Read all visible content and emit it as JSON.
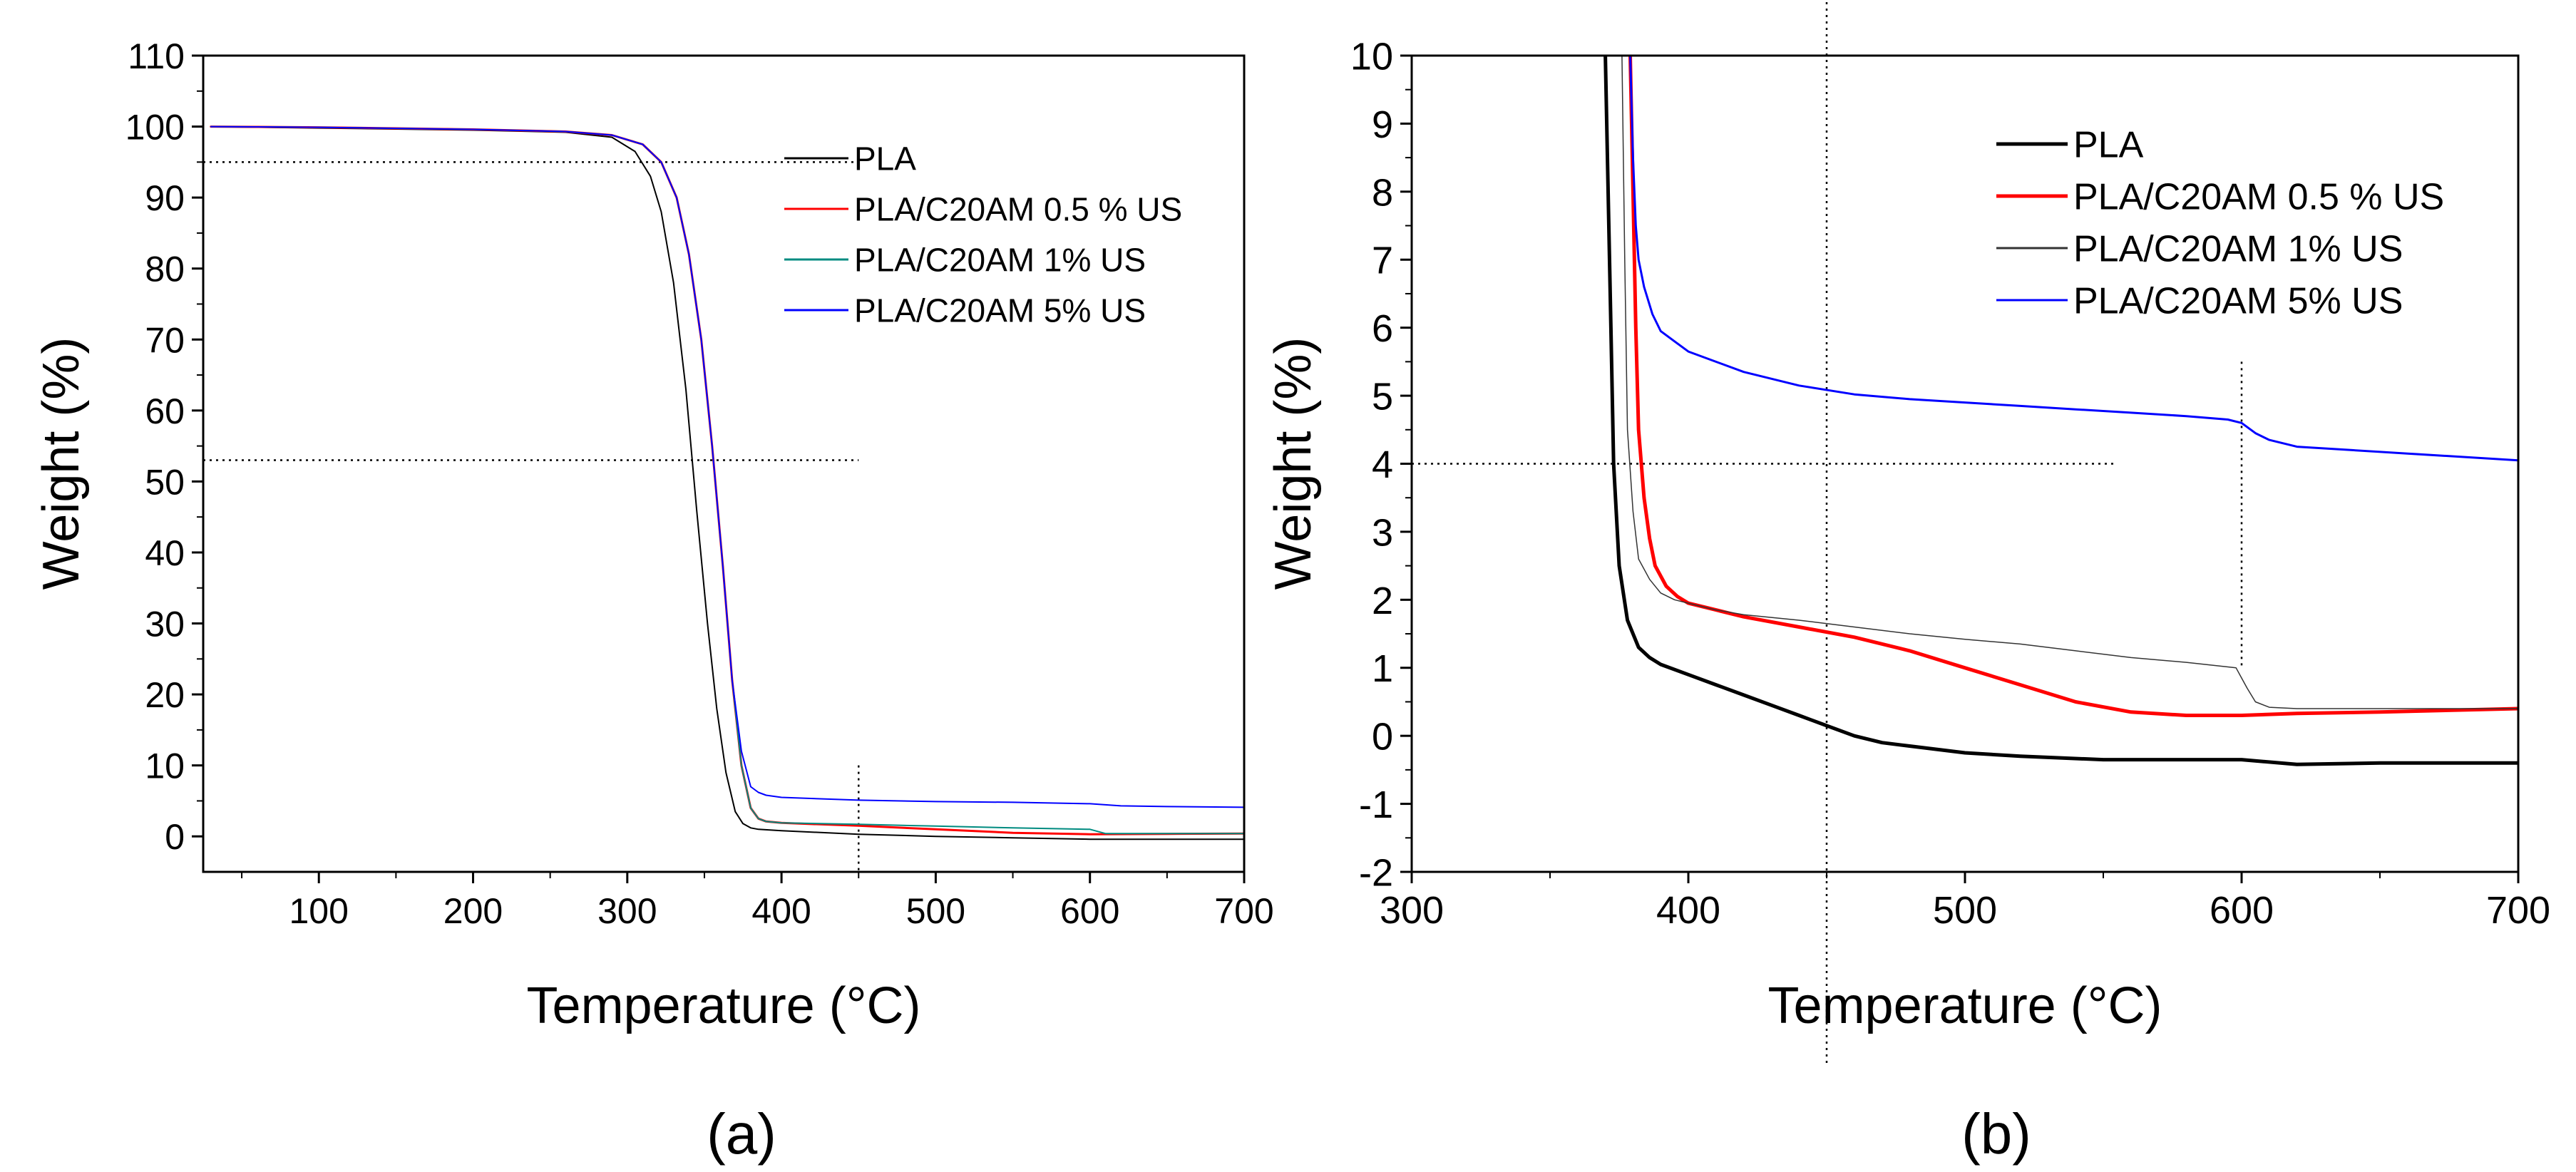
{
  "figure": {
    "panel_labels": [
      "(a)",
      "(b)"
    ]
  },
  "colors": {
    "PLA_a": "#000000",
    "PLA_b": "#000000",
    "red": "#ff0000",
    "teal": "#008b80",
    "grey": "#333333",
    "blue": "#0000ff",
    "reference": "#000000"
  },
  "chart_data": [
    {
      "type": "line",
      "panel": "(a)",
      "title": "",
      "xlabel": "Temperature (°C)",
      "ylabel": "Weight (%)",
      "xlim": [
        25,
        700
      ],
      "ylim": [
        -5,
        110
      ],
      "xticks": [
        100,
        200,
        300,
        400,
        500,
        600,
        700
      ],
      "yticks": [
        0,
        10,
        20,
        30,
        40,
        50,
        60,
        70,
        80,
        90,
        100,
        110
      ],
      "legend_position": "top-right",
      "series": [
        {
          "name": "PLA",
          "color_key": "PLA_a",
          "width": 2,
          "x": [
            30,
            100,
            200,
            260,
            290,
            305,
            315,
            322,
            330,
            338,
            345,
            352,
            358,
            364,
            370,
            375,
            380,
            385,
            400,
            450,
            500,
            550,
            600,
            650,
            700
          ],
          "y": [
            100,
            99.8,
            99.5,
            99.2,
            98.5,
            96.5,
            93,
            88,
            78,
            63,
            46,
            30,
            18,
            9,
            3.5,
            1.8,
            1.2,
            1.0,
            0.8,
            0.3,
            0.0,
            -0.2,
            -0.4,
            -0.4,
            -0.4
          ]
        },
        {
          "name": "PLA/C20AM 0.5 % US",
          "color_key": "red",
          "width": 3,
          "x": [
            30,
            100,
            200,
            260,
            290,
            310,
            322,
            332,
            340,
            348,
            355,
            362,
            368,
            374,
            380,
            385,
            390,
            400,
            450,
            500,
            550,
            600,
            650,
            700
          ],
          "y": [
            100,
            99.9,
            99.6,
            99.3,
            98.8,
            97.5,
            95,
            90,
            82,
            70,
            55,
            38,
            22,
            10,
            4,
            2.5,
            2.1,
            1.9,
            1.5,
            1.0,
            0.5,
            0.3,
            0.35,
            0.4
          ]
        },
        {
          "name": "PLA/C20AM 1% US",
          "color_key": "teal",
          "width": 2,
          "x": [
            30,
            100,
            200,
            260,
            290,
            310,
            322,
            332,
            340,
            348,
            355,
            362,
            368,
            374,
            380,
            385,
            390,
            400,
            450,
            500,
            550,
            600,
            610,
            650,
            700
          ],
          "y": [
            100,
            99.9,
            99.6,
            99.3,
            98.8,
            97.5,
            95,
            90,
            82,
            70,
            55,
            38,
            22,
            10,
            4,
            2.5,
            2.1,
            1.9,
            1.7,
            1.45,
            1.2,
            1.0,
            0.4,
            0.4,
            0.4
          ]
        },
        {
          "name": "PLA/C20AM 5% US",
          "color_key": "blue",
          "width": 2,
          "x": [
            30,
            100,
            200,
            260,
            290,
            310,
            322,
            332,
            340,
            348,
            355,
            362,
            368,
            374,
            380,
            385,
            390,
            400,
            450,
            500,
            550,
            600,
            620,
            650,
            700
          ],
          "y": [
            100,
            99.9,
            99.6,
            99.3,
            98.8,
            97.5,
            95,
            90,
            82,
            70,
            55,
            38,
            22,
            12,
            7,
            6.2,
            5.8,
            5.5,
            5.1,
            4.9,
            4.8,
            4.6,
            4.3,
            4.2,
            4.1
          ]
        }
      ],
      "reference_lines": [
        {
          "orientation": "h",
          "value": 95,
          "from": 25,
          "to": 450
        },
        {
          "orientation": "h",
          "value": 53,
          "from": 25,
          "to": 450
        },
        {
          "orientation": "v",
          "value": 450,
          "from": -5,
          "to": 10
        }
      ]
    },
    {
      "type": "line",
      "panel": "(b)",
      "title": "",
      "xlabel": "Temperature (°C)",
      "ylabel": "Weight (%)",
      "xlim": [
        300,
        700
      ],
      "ylim": [
        -2,
        10
      ],
      "xticks": [
        300,
        400,
        500,
        600,
        700
      ],
      "yticks": [
        -2,
        -1,
        0,
        1,
        2,
        3,
        4,
        5,
        6,
        7,
        8,
        9,
        10
      ],
      "legend_position": "top-right",
      "series": [
        {
          "name": "PLA",
          "color_key": "PLA_b",
          "width": 5,
          "x": [
            370,
            371,
            372,
            373,
            375,
            378,
            382,
            386,
            390,
            400,
            410,
            420,
            430,
            440,
            450,
            460,
            470,
            480,
            500,
            520,
            550,
            580,
            600,
            620,
            650,
            700
          ],
          "y": [
            10,
            8,
            6,
            4,
            2.5,
            1.7,
            1.3,
            1.15,
            1.05,
            0.9,
            0.75,
            0.6,
            0.45,
            0.3,
            0.15,
            0.0,
            -0.1,
            -0.15,
            -0.25,
            -0.3,
            -0.35,
            -0.35,
            -0.35,
            -0.42,
            -0.4,
            -0.4
          ]
        },
        {
          "name": "PLA/C20AM 0.5 % US",
          "color_key": "red",
          "width": 5,
          "x": [
            379,
            380,
            381,
            382,
            384,
            386,
            388,
            392,
            396,
            400,
            410,
            420,
            440,
            460,
            480,
            500,
            520,
            540,
            560,
            580,
            600,
            620,
            650,
            700
          ],
          "y": [
            10,
            8,
            6,
            4.5,
            3.5,
            2.9,
            2.5,
            2.2,
            2.05,
            1.95,
            1.85,
            1.75,
            1.6,
            1.45,
            1.25,
            1.0,
            0.75,
            0.5,
            0.35,
            0.3,
            0.3,
            0.33,
            0.35,
            0.4
          ]
        },
        {
          "name": "PLA/C20AM 1% US",
          "color_key": "grey",
          "width": 1.5,
          "x": [
            376,
            377,
            378,
            380,
            382,
            386,
            390,
            395,
            400,
            410,
            420,
            440,
            460,
            480,
            500,
            520,
            540,
            560,
            580,
            598,
            600,
            602,
            605,
            610,
            620,
            650,
            700
          ],
          "y": [
            10,
            7,
            4.5,
            3.3,
            2.6,
            2.3,
            2.1,
            2.0,
            1.95,
            1.85,
            1.78,
            1.7,
            1.6,
            1.5,
            1.42,
            1.35,
            1.25,
            1.15,
            1.08,
            1.0,
            0.85,
            0.7,
            0.5,
            0.42,
            0.4,
            0.4,
            0.4
          ]
        },
        {
          "name": "PLA/C20AM 5% US",
          "color_key": "blue",
          "width": 3,
          "x": [
            379,
            380,
            381,
            382,
            384,
            387,
            390,
            395,
            400,
            420,
            440,
            460,
            480,
            500,
            520,
            540,
            560,
            580,
            595,
            600,
            605,
            610,
            620,
            640,
            660,
            700
          ],
          "y": [
            10,
            8.5,
            7.5,
            7,
            6.6,
            6.2,
            5.95,
            5.8,
            5.65,
            5.35,
            5.15,
            5.02,
            4.95,
            4.9,
            4.85,
            4.8,
            4.75,
            4.7,
            4.65,
            4.6,
            4.45,
            4.35,
            4.25,
            4.2,
            4.15,
            4.05
          ]
        }
      ],
      "reference_lines": [
        {
          "orientation": "h",
          "value": 4,
          "from": 300,
          "to": 555
        },
        {
          "orientation": "v",
          "value": 450,
          "from": -2,
          "to": 10,
          "extends": true
        },
        {
          "orientation": "v",
          "value": 600,
          "from": 1,
          "to": 5.5
        }
      ]
    }
  ]
}
